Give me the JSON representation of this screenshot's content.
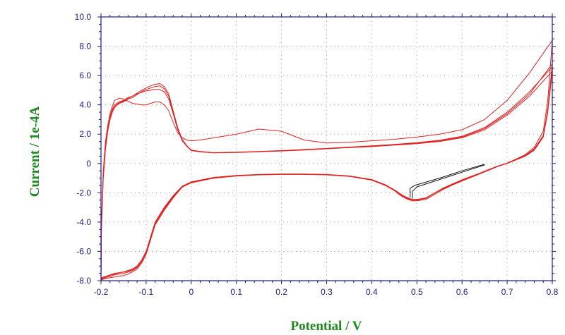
{
  "chart_data": {
    "type": "line",
    "title": "",
    "xlabel": "Potential / V",
    "ylabel": "Current / 1e-4A",
    "xlim": [
      -0.2,
      0.8
    ],
    "ylim": [
      -8.0,
      10.0
    ],
    "x_ticks": [
      -0.2,
      -0.1,
      0,
      0.1,
      0.2,
      0.3,
      0.4,
      0.5,
      0.6,
      0.7,
      0.8
    ],
    "x_tick_labels": [
      "-0.2",
      "-0.1",
      "0",
      "0.1",
      "0.2",
      "0.3",
      "0.4",
      "0.5",
      "0.6",
      "0.7",
      "0.8"
    ],
    "y_ticks": [
      10,
      8,
      6,
      4,
      2,
      0,
      -2,
      -4,
      -6,
      -8
    ],
    "y_tick_labels": [
      "10.0",
      "8.0",
      "6.0",
      "4.0",
      "2.0",
      "0",
      "-2.0",
      "-4.0",
      "-6.0",
      "-8.0"
    ],
    "grid": true,
    "grid_style": "dotted",
    "legend": "none",
    "colors": {
      "axis": "#1a1a8c",
      "tick_label": "#1a1a8c",
      "axis_title": "#1e8a1e",
      "grid": "#9aa0b8",
      "cycle": "#e02020",
      "initial_segment": "#111111"
    },
    "series": [
      {
        "color": "#e02020",
        "x": [
          -0.2,
          -0.199,
          -0.195,
          -0.19,
          -0.185,
          -0.18,
          -0.175,
          -0.17,
          -0.16,
          -0.15,
          -0.14,
          -0.13,
          -0.12,
          -0.11,
          -0.1,
          -0.09,
          -0.08,
          -0.07,
          -0.06,
          -0.05,
          -0.04,
          -0.03,
          -0.02,
          -0.01,
          0.0,
          0.02,
          0.05,
          0.1,
          0.15,
          0.2,
          0.25,
          0.3,
          0.35,
          0.4,
          0.45,
          0.5,
          0.55,
          0.6,
          0.65,
          0.7,
          0.75,
          0.8,
          0.79,
          0.78,
          0.76,
          0.74,
          0.72,
          0.7,
          0.68,
          0.66,
          0.64,
          0.62,
          0.6,
          0.58,
          0.56,
          0.54,
          0.52,
          0.5,
          0.49,
          0.48,
          0.47,
          0.46,
          0.45,
          0.43,
          0.4,
          0.35,
          0.3,
          0.25,
          0.2,
          0.15,
          0.1,
          0.05,
          0.0,
          -0.02,
          -0.04,
          -0.06,
          -0.08,
          -0.09,
          -0.1,
          -0.11,
          -0.12,
          -0.13,
          -0.14,
          -0.15,
          -0.16,
          -0.17,
          -0.18,
          -0.19,
          -0.2
        ],
        "y": [
          -8.0,
          -4.5,
          -1.0,
          1.0,
          2.2,
          3.0,
          3.5,
          3.8,
          4.1,
          4.2,
          4.4,
          4.5,
          4.7,
          4.9,
          5.05,
          5.15,
          5.25,
          5.3,
          5.1,
          4.6,
          3.5,
          2.4,
          1.6,
          1.2,
          0.9,
          0.8,
          0.72,
          0.75,
          0.8,
          0.85,
          0.92,
          1.0,
          1.08,
          1.15,
          1.25,
          1.35,
          1.5,
          1.75,
          2.3,
          3.3,
          4.6,
          6.3,
          3.5,
          1.8,
          0.9,
          0.5,
          0.25,
          0.0,
          -0.2,
          -0.45,
          -0.7,
          -0.95,
          -1.2,
          -1.45,
          -1.7,
          -2.0,
          -2.35,
          -2.45,
          -2.45,
          -2.35,
          -2.2,
          -2.0,
          -1.8,
          -1.45,
          -1.1,
          -0.85,
          -0.75,
          -0.72,
          -0.72,
          -0.75,
          -0.82,
          -0.95,
          -1.25,
          -1.55,
          -2.2,
          -3.0,
          -4.0,
          -5.0,
          -6.0,
          -6.6,
          -7.0,
          -7.2,
          -7.3,
          -7.4,
          -7.45,
          -7.5,
          -7.6,
          -7.7,
          -7.8
        ]
      },
      {
        "color": "#e02020",
        "x": [
          -0.2,
          -0.199,
          -0.195,
          -0.19,
          -0.185,
          -0.18,
          -0.175,
          -0.17,
          -0.16,
          -0.15,
          -0.14,
          -0.13,
          -0.12,
          -0.11,
          -0.1,
          -0.09,
          -0.08,
          -0.07,
          -0.06,
          -0.05,
          -0.04,
          -0.03,
          -0.02,
          -0.01,
          0.0,
          0.02,
          0.05,
          0.1,
          0.15,
          0.2,
          0.25,
          0.3,
          0.35,
          0.4,
          0.45,
          0.5,
          0.55,
          0.6,
          0.65,
          0.7,
          0.75,
          0.8,
          0.79,
          0.78,
          0.76,
          0.74,
          0.72,
          0.7,
          0.68,
          0.66,
          0.64,
          0.62,
          0.6,
          0.58,
          0.56,
          0.54,
          0.52,
          0.5,
          0.49,
          0.48,
          0.47,
          0.46,
          0.45,
          0.43,
          0.4,
          0.35,
          0.3,
          0.25,
          0.2,
          0.15,
          0.1,
          0.05,
          0.0,
          -0.02,
          -0.04,
          -0.06,
          -0.08,
          -0.09,
          -0.1,
          -0.11,
          -0.12,
          -0.13,
          -0.14,
          -0.15,
          -0.16,
          -0.17,
          -0.18,
          -0.19,
          -0.2
        ],
        "y": [
          -7.9,
          -4.3,
          -0.9,
          1.1,
          2.3,
          3.1,
          3.6,
          3.9,
          4.15,
          4.25,
          4.45,
          4.6,
          4.8,
          5.0,
          5.15,
          5.3,
          5.4,
          5.45,
          5.25,
          4.75,
          3.6,
          2.45,
          1.65,
          1.22,
          0.92,
          0.82,
          0.74,
          0.77,
          0.82,
          0.88,
          0.95,
          1.03,
          1.12,
          1.2,
          1.3,
          1.42,
          1.58,
          1.85,
          2.45,
          3.5,
          4.9,
          6.6,
          3.6,
          1.85,
          0.95,
          0.52,
          0.27,
          0.02,
          -0.18,
          -0.42,
          -0.68,
          -0.92,
          -1.18,
          -1.45,
          -1.75,
          -2.1,
          -2.45,
          -2.55,
          -2.55,
          -2.45,
          -2.3,
          -2.1,
          -1.85,
          -1.5,
          -1.13,
          -0.87,
          -0.76,
          -0.73,
          -0.73,
          -0.76,
          -0.84,
          -0.98,
          -1.3,
          -1.6,
          -2.3,
          -3.1,
          -4.1,
          -5.1,
          -6.1,
          -6.7,
          -7.1,
          -7.3,
          -7.42,
          -7.5,
          -7.55,
          -7.6,
          -7.7,
          -7.8,
          -7.9
        ]
      },
      {
        "color": "#e02020",
        "x": [
          -0.2,
          -0.199,
          -0.195,
          -0.19,
          -0.185,
          -0.18,
          -0.175,
          -0.17,
          -0.16,
          -0.15,
          -0.14,
          -0.13,
          -0.12,
          -0.11,
          -0.1,
          -0.09,
          -0.08,
          -0.07,
          -0.06,
          -0.05,
          -0.04,
          -0.03,
          -0.02,
          -0.01,
          0.0,
          0.02,
          0.05,
          0.1,
          0.15,
          0.2,
          0.25,
          0.3,
          0.35,
          0.4,
          0.45,
          0.5,
          0.55,
          0.6,
          0.65,
          0.7,
          0.75,
          0.8,
          0.79,
          0.78,
          0.76,
          0.74,
          0.72,
          0.7,
          0.68,
          0.66,
          0.64,
          0.62,
          0.6,
          0.58,
          0.56,
          0.54,
          0.52,
          0.5,
          0.49,
          0.48,
          0.47,
          0.46,
          0.45,
          0.43,
          0.4,
          0.35,
          0.3,
          0.25,
          0.2,
          0.15,
          0.1,
          0.05,
          0.0,
          -0.02,
          -0.04,
          -0.06,
          -0.08,
          -0.09,
          -0.1,
          -0.11,
          -0.12,
          -0.13,
          -0.14,
          -0.15,
          -0.16,
          -0.17,
          -0.18,
          -0.19,
          -0.2
        ],
        "y": [
          -7.8,
          -4.2,
          -0.8,
          1.2,
          2.4,
          3.2,
          3.7,
          4.0,
          4.2,
          4.3,
          4.5,
          4.6,
          4.75,
          4.85,
          4.95,
          5.0,
          5.05,
          5.05,
          4.9,
          4.4,
          3.4,
          2.3,
          1.55,
          1.18,
          0.88,
          0.79,
          0.73,
          0.76,
          0.81,
          0.86,
          0.93,
          1.01,
          1.1,
          1.18,
          1.28,
          1.4,
          1.55,
          1.8,
          2.38,
          3.4,
          4.75,
          6.8,
          3.7,
          1.9,
          1.0,
          0.55,
          0.28,
          0.02,
          -0.18,
          -0.42,
          -0.67,
          -0.9,
          -1.15,
          -1.4,
          -1.68,
          -2.02,
          -2.38,
          -2.5,
          -2.5,
          -2.4,
          -2.25,
          -2.05,
          -1.82,
          -1.48,
          -1.12,
          -0.86,
          -0.76,
          -0.73,
          -0.73,
          -0.76,
          -0.83,
          -0.97,
          -1.28,
          -1.58,
          -2.25,
          -3.05,
          -4.05,
          -5.05,
          -6.05,
          -6.65,
          -7.05,
          -7.25,
          -7.35,
          -7.42,
          -7.47,
          -7.55,
          -7.65,
          -7.75,
          -7.85
        ]
      },
      {
        "color": "#e02020",
        "x": [
          -0.2,
          -0.199,
          -0.195,
          -0.19,
          -0.185,
          -0.18,
          -0.175,
          -0.17,
          -0.16,
          -0.15,
          -0.14,
          -0.13,
          -0.12,
          -0.11,
          -0.1,
          -0.09,
          -0.08,
          -0.07,
          -0.06,
          -0.05,
          -0.04,
          -0.03,
          -0.02,
          -0.01,
          0.0,
          0.02,
          0.05,
          0.1,
          0.15,
          0.2,
          0.25,
          0.3,
          0.35,
          0.4,
          0.45,
          0.5,
          0.55,
          0.6,
          0.65,
          0.7,
          0.75,
          0.8,
          0.79,
          0.78,
          0.76,
          0.74,
          0.72,
          0.7,
          0.68,
          0.66,
          0.64,
          0.62,
          0.6,
          0.58,
          0.56,
          0.54,
          0.52,
          0.5,
          0.49,
          0.48,
          0.47,
          0.46,
          0.45,
          0.43,
          0.4,
          0.35,
          0.3,
          0.25,
          0.2,
          0.15,
          0.1,
          0.05,
          0.0,
          -0.02,
          -0.04,
          -0.06,
          -0.08,
          -0.09,
          -0.1,
          -0.11,
          -0.12,
          -0.13,
          -0.14,
          -0.15,
          -0.16,
          -0.17,
          -0.18,
          -0.19,
          -0.2
        ],
        "y": [
          -7.7,
          -4.0,
          -0.5,
          1.5,
          2.6,
          3.4,
          3.9,
          4.3,
          4.45,
          4.4,
          4.25,
          4.1,
          4.05,
          4.0,
          4.0,
          4.1,
          4.2,
          4.2,
          4.0,
          3.6,
          2.8,
          2.1,
          1.75,
          1.6,
          1.55,
          1.6,
          1.75,
          2.0,
          2.35,
          2.2,
          1.6,
          1.4,
          1.45,
          1.55,
          1.65,
          1.8,
          2.0,
          2.3,
          3.0,
          4.3,
          6.2,
          8.4,
          4.3,
          2.2,
          1.1,
          0.6,
          0.3,
          0.03,
          -0.17,
          -0.4,
          -0.65,
          -0.88,
          -1.12,
          -1.38,
          -1.65,
          -2.0,
          -2.35,
          -2.48,
          -2.5,
          -2.42,
          -2.28,
          -2.08,
          -1.85,
          -1.5,
          -1.14,
          -0.88,
          -0.78,
          -0.75,
          -0.75,
          -0.78,
          -0.86,
          -1.0,
          -1.32,
          -1.62,
          -2.35,
          -3.2,
          -4.2,
          -5.2,
          -6.2,
          -6.8,
          -7.2,
          -7.4,
          -7.55,
          -7.65,
          -7.7,
          -7.75,
          -7.8,
          -7.85,
          -7.95
        ]
      },
      {
        "color": "#111111",
        "x": [
          0.49,
          0.49,
          0.5,
          0.55,
          0.6,
          0.65
        ],
        "y": [
          -2.4,
          -1.9,
          -1.6,
          -1.1,
          -0.6,
          -0.1
        ]
      },
      {
        "color": "#111111",
        "x": [
          0.485,
          0.485,
          0.495,
          0.55,
          0.6,
          0.65
        ],
        "y": [
          -2.3,
          -1.7,
          -1.5,
          -1.0,
          -0.5,
          -0.05
        ]
      }
    ]
  }
}
